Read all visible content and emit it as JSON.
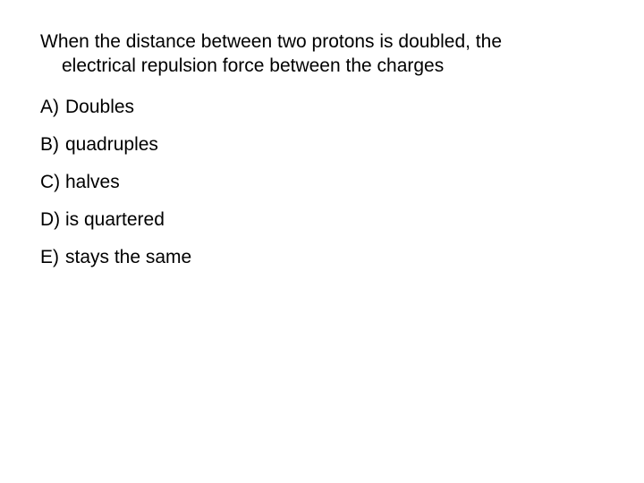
{
  "question": {
    "line1": "When the distance between two protons is doubled, the",
    "line2": "electrical repulsion force between the charges"
  },
  "options": [
    {
      "label": "A)",
      "text": "Doubles"
    },
    {
      "label": "B)",
      "text": "quadruples"
    },
    {
      "label": "C)",
      "text": "halves"
    },
    {
      "label": "D)",
      "text": "is quartered"
    },
    {
      "label": "E)",
      "text": "stays the same"
    }
  ],
  "colors": {
    "background": "#ffffff",
    "text": "#000000"
  },
  "typography": {
    "font_family": "Arial",
    "font_size_pt": 16
  }
}
